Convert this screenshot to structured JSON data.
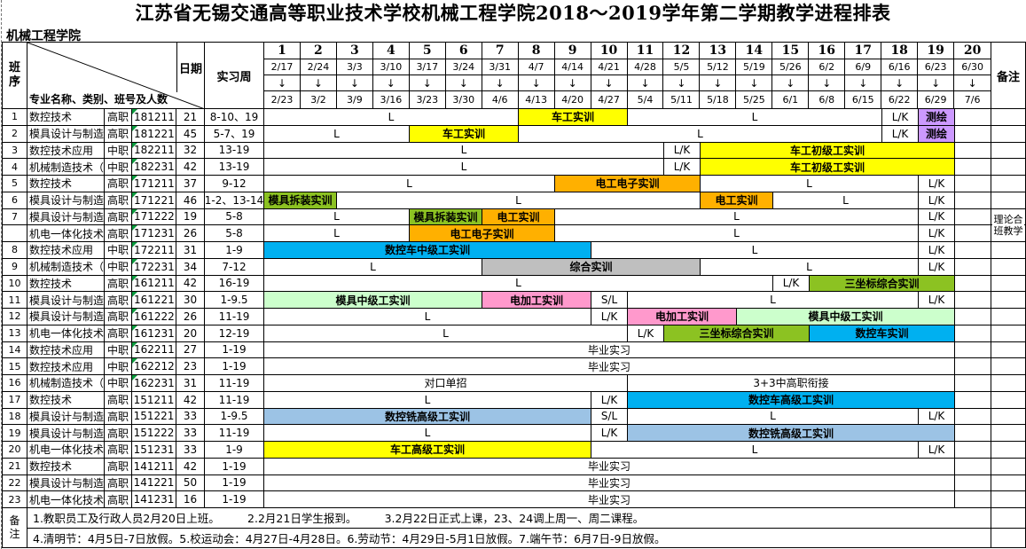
{
  "title": "江苏省无锡交通高等职业技术学校机械工程学院2018～2019学年第二学期教学进程排表",
  "college": "机械工程学院",
  "header": {
    "class_label": "班序",
    "date_label": "日期",
    "practice_label": "实习周",
    "diagonal_label": "专业名称、类别、班号及人数",
    "remark_label": "备注",
    "arrow": "↓",
    "weeks": [
      {
        "num": "1",
        "start": "2/17",
        "end": "2/23"
      },
      {
        "num": "2",
        "start": "2/24",
        "end": "3/2"
      },
      {
        "num": "3",
        "start": "3/3",
        "end": "3/9"
      },
      {
        "num": "4",
        "start": "3/10",
        "end": "3/16"
      },
      {
        "num": "5",
        "start": "3/17",
        "end": "3/23"
      },
      {
        "num": "6",
        "start": "3/24",
        "end": "3/30"
      },
      {
        "num": "7",
        "start": "3/31",
        "end": "4/6"
      },
      {
        "num": "8",
        "start": "4/7",
        "end": "4/13"
      },
      {
        "num": "9",
        "start": "4/14",
        "end": "4/20"
      },
      {
        "num": "10",
        "start": "4/21",
        "end": "4/27"
      },
      {
        "num": "11",
        "start": "4/28",
        "end": "5/4"
      },
      {
        "num": "12",
        "start": "5/5",
        "end": "5/11"
      },
      {
        "num": "13",
        "start": "5/12",
        "end": "5/18"
      },
      {
        "num": "14",
        "start": "5/19",
        "end": "5/25"
      },
      {
        "num": "15",
        "start": "5/26",
        "end": "6/1"
      },
      {
        "num": "16",
        "start": "6/2",
        "end": "6/8"
      },
      {
        "num": "17",
        "start": "6/9",
        "end": "6/15"
      },
      {
        "num": "18",
        "start": "6/16",
        "end": "6/22"
      },
      {
        "num": "19",
        "start": "6/23",
        "end": "6/29"
      },
      {
        "num": "20",
        "start": "6/30",
        "end": "7/6"
      }
    ]
  },
  "colors": {
    "yellow": "#FFFF00",
    "orange": "#FFB000",
    "green": "#8CC222",
    "cyan": "#00B0F0",
    "lightblue": "#9CC3E5",
    "lightgreen": "#CCFFCC",
    "pink": "#FF99CC",
    "purple": "#CC99FF",
    "gray": "#BFBFBF"
  },
  "rows": [
    {
      "no": "1",
      "name": "数控技术",
      "type": "高职",
      "class_id": "181211",
      "count": "21",
      "practice": "8-10、19",
      "marker": true,
      "segments": [
        {
          "w": 7,
          "label": "L"
        },
        {
          "w": 3,
          "label": "车工实训",
          "color": "yellow"
        },
        {
          "w": 7,
          "label": "L"
        },
        {
          "w": 1,
          "label": "L/K"
        },
        {
          "w": 1,
          "label": "测绘",
          "color": "purple"
        },
        {
          "w": 1,
          "label": ""
        }
      ]
    },
    {
      "no": "2",
      "name": "模具设计与制造",
      "type": "高职",
      "class_id": "181221",
      "count": "45",
      "practice": "5-7、19",
      "marker": true,
      "segments": [
        {
          "w": 4,
          "label": "L"
        },
        {
          "w": 3,
          "label": "车工实训",
          "color": "yellow"
        },
        {
          "w": 10,
          "label": "L"
        },
        {
          "w": 1,
          "label": "L/K"
        },
        {
          "w": 1,
          "label": "测绘",
          "color": "purple"
        },
        {
          "w": 1,
          "label": ""
        }
      ]
    },
    {
      "no": "3",
      "name": "数控技术应用",
      "type": "中职",
      "class_id": "182211",
      "count": "32",
      "practice": "13-19",
      "marker": true,
      "segments": [
        {
          "w": 11,
          "label": "L"
        },
        {
          "w": 1,
          "label": "L/K"
        },
        {
          "w": 7,
          "label": "车工初级工实训",
          "color": "yellow"
        },
        {
          "w": 1,
          "label": ""
        }
      ]
    },
    {
      "no": "4",
      "name": "机械制造技术（数",
      "type": "中职",
      "class_id": "182231",
      "count": "42",
      "practice": "13-19",
      "marker": true,
      "segments": [
        {
          "w": 11,
          "label": "L"
        },
        {
          "w": 1,
          "label": "L/K"
        },
        {
          "w": 7,
          "label": "车工初级工实训",
          "color": "yellow"
        },
        {
          "w": 1,
          "label": ""
        }
      ]
    },
    {
      "no": "5",
      "name": "数控技术",
      "type": "高职",
      "class_id": "171211",
      "count": "37",
      "practice": "9-12",
      "marker": true,
      "segments": [
        {
          "w": 8,
          "label": "L"
        },
        {
          "w": 4,
          "label": "电工电子实训",
          "color": "orange"
        },
        {
          "w": 6,
          "label": "L"
        },
        {
          "w": 1,
          "label": "L/K"
        },
        {
          "w": 1,
          "label": ""
        }
      ]
    },
    {
      "no": "6",
      "name": "模具设计与制造",
      "type": "高职",
      "class_id": "171221",
      "count": "46",
      "practice": "1-2、13-14",
      "marker": true,
      "segments": [
        {
          "w": 2,
          "label": "模具拆装实训",
          "color": "green"
        },
        {
          "w": 10,
          "label": "L"
        },
        {
          "w": 2,
          "label": "电工实训",
          "color": "orange"
        },
        {
          "w": 4,
          "label": "L"
        },
        {
          "w": 1,
          "label": "L/K"
        },
        {
          "w": 1,
          "label": ""
        }
      ]
    },
    {
      "no": "7",
      "name": "模具设计与制造",
      "type": "高职",
      "class_id": "171222",
      "count": "19",
      "practice": "5-8",
      "marker": true,
      "segments": [
        {
          "w": 4,
          "label": "L"
        },
        {
          "w": 2,
          "label": "模具拆装实训",
          "color": "green"
        },
        {
          "w": 2,
          "label": "电工实训",
          "color": "orange"
        },
        {
          "w": 10,
          "label": "L"
        },
        {
          "w": 1,
          "label": "L/K"
        },
        {
          "w": 1,
          "label": ""
        }
      ]
    },
    {
      "no": "",
      "name": "机电一体化技术",
      "type": "高职",
      "class_id": "171231",
      "count": "26",
      "practice": "5-8",
      "marker": true,
      "segments": [
        {
          "w": 4,
          "label": "L"
        },
        {
          "w": 4,
          "label": "电工电子实训",
          "color": "orange"
        },
        {
          "w": 10,
          "label": "L"
        },
        {
          "w": 1,
          "label": "L/K"
        },
        {
          "w": 1,
          "label": ""
        }
      ]
    },
    {
      "no": "8",
      "name": "数控技术应用",
      "type": "中职",
      "class_id": "172211",
      "count": "31",
      "practice": "1-9",
      "marker": true,
      "segments": [
        {
          "w": 9,
          "label": "数控车中级工实训",
          "color": "cyan"
        },
        {
          "w": 9,
          "label": "L"
        },
        {
          "w": 1,
          "label": "L/K"
        },
        {
          "w": 1,
          "label": ""
        }
      ]
    },
    {
      "no": "9",
      "name": "机械制造技术（数",
      "type": "中职",
      "class_id": "172231",
      "count": "34",
      "practice": "7-12",
      "marker": true,
      "segments": [
        {
          "w": 6,
          "label": "L"
        },
        {
          "w": 6,
          "label": "综合实训",
          "color": "gray"
        },
        {
          "w": 6,
          "label": "L"
        },
        {
          "w": 1,
          "label": "L/K"
        },
        {
          "w": 1,
          "label": ""
        }
      ]
    },
    {
      "no": "10",
      "name": "数控技术",
      "type": "高职",
      "class_id": "161211",
      "count": "42",
      "practice": "16-19",
      "marker": true,
      "segments": [
        {
          "w": 14,
          "label": "L"
        },
        {
          "w": 1,
          "label": "L/K"
        },
        {
          "w": 4,
          "label": "三坐标综合实训",
          "color": "green"
        },
        {
          "w": 1,
          "label": ""
        }
      ]
    },
    {
      "no": "11",
      "name": "模具设计与制造",
      "type": "高职",
      "class_id": "161221",
      "count": "30",
      "practice": "1-9.5",
      "marker": true,
      "segments": [
        {
          "w": 6,
          "label": "模具中级工实训",
          "color": "lightgreen"
        },
        {
          "w": 3,
          "label": "电加工实训",
          "color": "pink"
        },
        {
          "w": 1,
          "label": "S/L"
        },
        {
          "w": 8,
          "label": "L"
        },
        {
          "w": 1,
          "label": "L/K"
        },
        {
          "w": 1,
          "label": ""
        }
      ]
    },
    {
      "no": "12",
      "name": "模具设计与制造",
      "type": "高职",
      "class_id": "161222",
      "count": "26",
      "practice": "11-19",
      "marker": true,
      "segments": [
        {
          "w": 9,
          "label": "L"
        },
        {
          "w": 1,
          "label": "L/K"
        },
        {
          "w": 3,
          "label": "电加工实训",
          "color": "pink"
        },
        {
          "w": 6,
          "label": "模具中级工实训",
          "color": "lightgreen"
        },
        {
          "w": 1,
          "label": ""
        }
      ]
    },
    {
      "no": "13",
      "name": "机电一体化技术",
      "type": "高职",
      "class_id": "161231",
      "count": "20",
      "practice": "12-19",
      "marker": true,
      "segments": [
        {
          "w": 10,
          "label": "L"
        },
        {
          "w": 1,
          "label": "L/K"
        },
        {
          "w": 4,
          "label": "三坐标综合实训",
          "color": "green"
        },
        {
          "w": 4,
          "label": "数控车实训",
          "color": "cyan"
        },
        {
          "w": 1,
          "label": ""
        }
      ]
    },
    {
      "no": "14",
      "name": "数控技术应用",
      "type": "中职",
      "class_id": "162211",
      "count": "27",
      "practice": "1-19",
      "marker": true,
      "segments": [
        {
          "w": 19,
          "label": "毕业实习"
        },
        {
          "w": 1,
          "label": ""
        }
      ]
    },
    {
      "no": "15",
      "name": "数控技术应用",
      "type": "中职",
      "class_id": "162212",
      "count": "23",
      "practice": "1-19",
      "marker": true,
      "segments": [
        {
          "w": 19,
          "label": "毕业实习"
        },
        {
          "w": 1,
          "label": ""
        }
      ]
    },
    {
      "no": "16",
      "name": "机械制造技术（数",
      "type": "中职",
      "class_id": "162231",
      "count": "31",
      "practice": "11-19",
      "marker": true,
      "segments": [
        {
          "w": 10,
          "label": "对口单招"
        },
        {
          "w": 9,
          "label": "3+3中高职衔接"
        },
        {
          "w": 1,
          "label": ""
        }
      ]
    },
    {
      "no": "17",
      "name": "数控技术",
      "type": "高职",
      "class_id": "151211",
      "count": "42",
      "practice": "11-19",
      "marker": false,
      "segments": [
        {
          "w": 9,
          "label": "L"
        },
        {
          "w": 1,
          "label": "L/K"
        },
        {
          "w": 9,
          "label": "数控车高级工实训",
          "color": "cyan"
        },
        {
          "w": 1,
          "label": ""
        }
      ]
    },
    {
      "no": "18",
      "name": "模具设计与制造",
      "type": "高职",
      "class_id": "151221",
      "count": "33",
      "practice": "1-9.5",
      "marker": false,
      "segments": [
        {
          "w": 9,
          "label": "数控铣高级工实训",
          "color": "lightblue"
        },
        {
          "w": 1,
          "label": "S/L"
        },
        {
          "w": 8,
          "label": "L"
        },
        {
          "w": 1,
          "label": "L/K"
        },
        {
          "w": 1,
          "label": ""
        }
      ]
    },
    {
      "no": "19",
      "name": "模具设计与制造",
      "type": "高职",
      "class_id": "151222",
      "count": "33",
      "practice": "11-19",
      "marker": false,
      "segments": [
        {
          "w": 9,
          "label": "L"
        },
        {
          "w": 1,
          "label": "L/K"
        },
        {
          "w": 9,
          "label": "数控铣高级工实训",
          "color": "lightblue"
        },
        {
          "w": 1,
          "label": ""
        }
      ]
    },
    {
      "no": "20",
      "name": "机电一体化技术",
      "type": "高职",
      "class_id": "151231",
      "count": "33",
      "practice": "1-9",
      "marker": false,
      "segments": [
        {
          "w": 9,
          "label": "车工高级工实训",
          "color": "yellow"
        },
        {
          "w": 9,
          "label": "L"
        },
        {
          "w": 1,
          "label": "L/K"
        },
        {
          "w": 1,
          "label": ""
        }
      ]
    },
    {
      "no": "21",
      "name": "数控技术",
      "type": "高职",
      "class_id": "141211",
      "count": "42",
      "practice": "1-19",
      "marker": false,
      "segments": [
        {
          "w": 19,
          "label": "毕业实习"
        },
        {
          "w": 1,
          "label": ""
        }
      ]
    },
    {
      "no": "22",
      "name": "模具设计与制造",
      "type": "高职",
      "class_id": "141221",
      "count": "50",
      "practice": "1-19",
      "marker": false,
      "segments": [
        {
          "w": 19,
          "label": "毕业实习"
        },
        {
          "w": 1,
          "label": ""
        }
      ]
    },
    {
      "no": "23",
      "name": "机电一体化技术",
      "type": "高职",
      "class_id": "141231",
      "count": "16",
      "practice": "1-19",
      "marker": false,
      "segments": [
        {
          "w": 19,
          "label": "毕业实习"
        },
        {
          "w": 1,
          "label": ""
        }
      ]
    }
  ],
  "merged_remark": {
    "text": "理论合班教学",
    "row_start": 6,
    "span": 2
  },
  "notes": {
    "label": "备注",
    "line1": "1.教职员工及行政人员2月20日上班。　　　2.2月21日学生报到。　　　3.2月22日正式上课，23、24调上周一、周二课程。",
    "line2": "4.清明节：4月5日-7日放假。5.校运动会：4月27日-4月28日。6.劳动节：4月29日-5月1日放假。7.端午节：6月7日-9日放假。"
  }
}
